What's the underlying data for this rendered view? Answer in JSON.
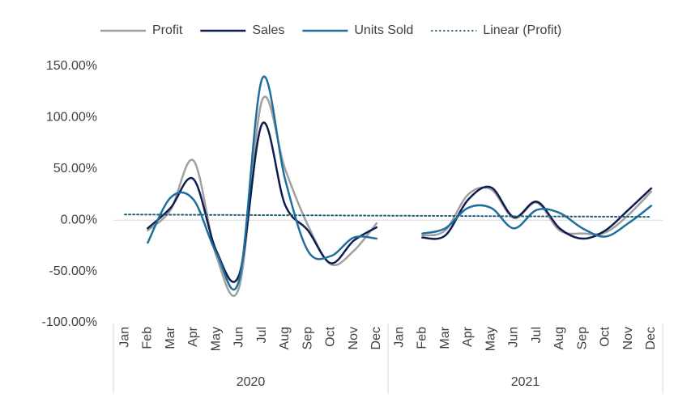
{
  "chart_data": {
    "type": "line",
    "categories": [
      "Jan",
      "Feb",
      "Mar",
      "Apr",
      "May",
      "Jun",
      "Jul",
      "Aug",
      "Sep",
      "Oct",
      "Nov",
      "Dec",
      "Jan",
      "Feb",
      "Mar",
      "Apr",
      "May",
      "Jun",
      "Jul",
      "Aug",
      "Sep",
      "Oct",
      "Nov",
      "Dec"
    ],
    "groups": [
      "2020",
      "2021"
    ],
    "series": [
      {
        "name": "Profit",
        "color": "#a0a0a0",
        "style": "solid",
        "smooth": true,
        "values": [
          null,
          -10,
          10,
          58,
          -35,
          -65,
          117,
          50,
          -5,
          -43,
          -30,
          -3,
          null,
          -15,
          -10,
          25,
          30,
          2,
          17,
          -10,
          -13,
          -12,
          5,
          28
        ]
      },
      {
        "name": "Sales",
        "color": "#0e1d4f",
        "style": "solid",
        "smooth": true,
        "values": [
          null,
          -8,
          12,
          40,
          -30,
          -53,
          94,
          15,
          -10,
          -42,
          -20,
          -7,
          null,
          -17,
          -15,
          20,
          32,
          3,
          18,
          -8,
          -18,
          -10,
          10,
          31
        ]
      },
      {
        "name": "Units Sold",
        "color": "#1f6e9c",
        "style": "solid",
        "smooth": true,
        "values": [
          null,
          -22,
          22,
          20,
          -32,
          -58,
          138,
          40,
          -30,
          -35,
          -17,
          -18,
          null,
          -13,
          -8,
          12,
          12,
          -8,
          10,
          7,
          -8,
          -16,
          -3,
          14
        ]
      },
      {
        "name": "Linear (Profit)",
        "color": "#1f5f7a",
        "style": "dotted",
        "smooth": false,
        "values": [
          5.5,
          5.4,
          5.3,
          5.2,
          5.1,
          5.0,
          4.9,
          4.8,
          4.7,
          4.6,
          4.5,
          4.4,
          4.3,
          4.2,
          4.1,
          4.0,
          3.9,
          3.8,
          3.7,
          3.6,
          3.5,
          3.4,
          3.3,
          3.2
        ]
      }
    ],
    "ylim": [
      -100,
      150
    ],
    "yticks": [
      {
        "value": -100,
        "label": "-100.00%"
      },
      {
        "value": -50,
        "label": "-50.00%"
      },
      {
        "value": 0,
        "label": "0.00%"
      },
      {
        "value": 50,
        "label": "50.00%"
      },
      {
        "value": 100,
        "label": "100.00%"
      },
      {
        "value": 150,
        "label": "150.00%"
      }
    ],
    "zero_line": true,
    "legend": "top"
  }
}
